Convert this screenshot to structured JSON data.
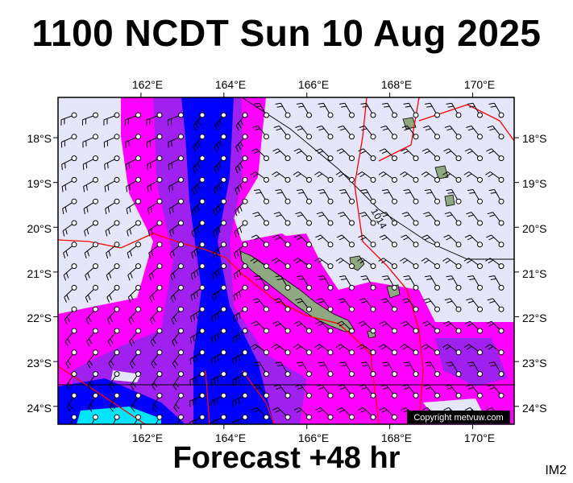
{
  "header": {
    "title": "1100 NCDT Sun 10 Aug 2025"
  },
  "footer": {
    "forecast": "Forecast +48 hr",
    "code": "IM2"
  },
  "map": {
    "copyright": "Copyright metvuw.com",
    "isobar_label": "1014",
    "lon_ticks": [
      "162°E",
      "164°E",
      "166°E",
      "168°E",
      "170°E"
    ],
    "lon_values": [
      162,
      164,
      166,
      168,
      170
    ],
    "lat_ticks": [
      "18°S",
      "19°S",
      "20°S",
      "21°S",
      "22°S",
      "23°S",
      "24°S"
    ],
    "lat_values": [
      -18,
      -19,
      -20,
      -21,
      -22,
      -23,
      -24
    ],
    "lon_range": [
      160.0,
      171.0
    ],
    "lat_range": [
      -24.4,
      -17.1
    ],
    "colors": {
      "ocean": "#e6e6fa",
      "rain_light": "#ff00ff",
      "rain_medium": "#a020f0",
      "rain_heavy": "#0000ff",
      "rain_extreme": "#00e5ff",
      "land": "#8fa882",
      "isobar": "#000000",
      "front": "#ff0000"
    }
  }
}
